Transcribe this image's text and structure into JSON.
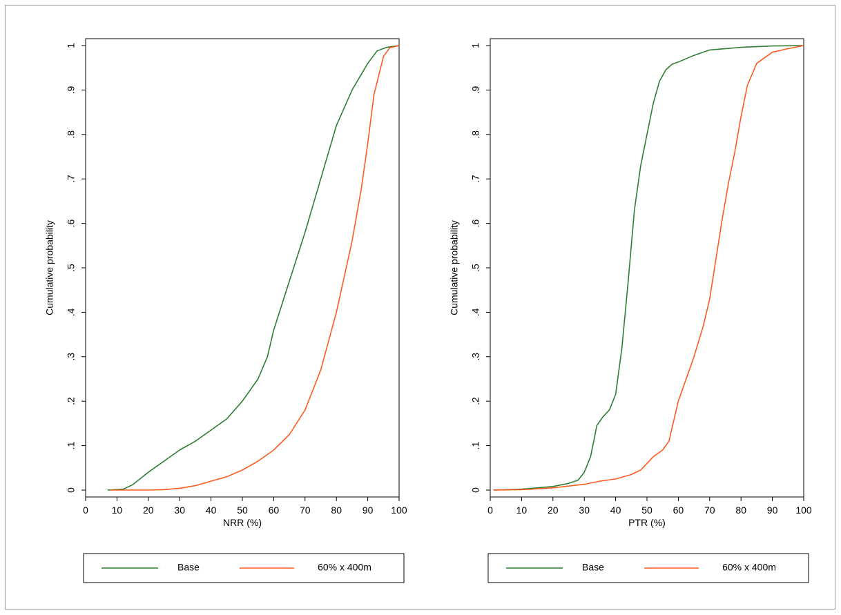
{
  "colors": {
    "base": "#2e7d32",
    "scenario": "#ff5a1f",
    "axis": "#000000",
    "frame": "#9a9a9a"
  },
  "chart_data": [
    {
      "type": "line",
      "xlabel": "NRR (%)",
      "ylabel": "Cumulative probability",
      "xlim": [
        0,
        100
      ],
      "ylim": [
        0,
        1
      ],
      "xticks": [
        0,
        10,
        20,
        30,
        40,
        50,
        60,
        70,
        80,
        90,
        100
      ],
      "xtick_labels": [
        "0",
        "10",
        "20",
        "30",
        "40",
        "50",
        "60",
        "70",
        "80",
        "90",
        "100"
      ],
      "yticks": [
        0,
        0.1,
        0.2,
        0.3,
        0.4,
        0.5,
        0.6,
        0.7,
        0.8,
        0.9,
        1
      ],
      "ytick_labels": [
        "0",
        ".1",
        ".2",
        ".3",
        ".4",
        ".5",
        ".6",
        ".7",
        ".8",
        ".9",
        "1"
      ],
      "legend_position": "bottom",
      "series": [
        {
          "name": "Base",
          "color": "#2e7d32",
          "x": [
            7,
            12,
            15,
            20,
            25,
            30,
            35,
            40,
            45,
            50,
            55,
            58,
            60,
            65,
            70,
            75,
            80,
            85,
            90,
            93,
            96,
            100
          ],
          "y": [
            0,
            0.002,
            0.012,
            0.04,
            0.065,
            0.09,
            0.11,
            0.135,
            0.16,
            0.2,
            0.25,
            0.3,
            0.36,
            0.47,
            0.58,
            0.7,
            0.82,
            0.9,
            0.96,
            0.988,
            0.996,
            1
          ]
        },
        {
          "name": "60% x 400m",
          "color": "#ff5a1f",
          "x": [
            8,
            15,
            20,
            25,
            30,
            35,
            40,
            45,
            50,
            55,
            60,
            65,
            70,
            75,
            80,
            85,
            88,
            90,
            92,
            95,
            97,
            100
          ],
          "y": [
            0,
            0,
            0,
            0.001,
            0.004,
            0.01,
            0.02,
            0.03,
            0.045,
            0.065,
            0.09,
            0.125,
            0.18,
            0.27,
            0.4,
            0.56,
            0.68,
            0.78,
            0.89,
            0.975,
            0.995,
            1
          ]
        }
      ]
    },
    {
      "type": "line",
      "xlabel": "PTR (%)",
      "ylabel": "Cumulative probability",
      "xlim": [
        0,
        100
      ],
      "ylim": [
        0,
        1
      ],
      "xticks": [
        0,
        10,
        20,
        30,
        40,
        50,
        60,
        70,
        80,
        90,
        100
      ],
      "xtick_labels": [
        "0",
        "10",
        "20",
        "30",
        "40",
        "50",
        "60",
        "70",
        "80",
        "90",
        "100"
      ],
      "yticks": [
        0,
        0.1,
        0.2,
        0.3,
        0.4,
        0.5,
        0.6,
        0.7,
        0.8,
        0.9,
        1
      ],
      "ytick_labels": [
        "0",
        ".1",
        ".2",
        ".3",
        ".4",
        ".5",
        ".6",
        ".7",
        ".8",
        ".9",
        "1"
      ],
      "legend_position": "bottom",
      "series": [
        {
          "name": "Base",
          "color": "#2e7d32",
          "x": [
            1,
            10,
            20,
            25,
            28,
            30,
            32,
            34,
            36,
            38,
            40,
            42,
            44,
            46,
            48,
            50,
            52,
            54,
            56,
            58,
            60,
            65,
            70,
            80,
            90,
            100
          ],
          "y": [
            0,
            0.002,
            0.008,
            0.015,
            0.022,
            0.04,
            0.075,
            0.145,
            0.165,
            0.18,
            0.215,
            0.32,
            0.47,
            0.63,
            0.73,
            0.8,
            0.87,
            0.92,
            0.945,
            0.958,
            0.963,
            0.978,
            0.99,
            0.996,
            0.999,
            1
          ]
        },
        {
          "name": "60% x 400m",
          "color": "#ff5a1f",
          "x": [
            1,
            10,
            20,
            30,
            35,
            40,
            45,
            48,
            50,
            52,
            55,
            57,
            58,
            60,
            62,
            65,
            68,
            70,
            72,
            74,
            76,
            78,
            80,
            82,
            85,
            90,
            95,
            100
          ],
          "y": [
            0,
            0.001,
            0.005,
            0.013,
            0.02,
            0.025,
            0.035,
            0.045,
            0.06,
            0.075,
            0.09,
            0.11,
            0.14,
            0.2,
            0.24,
            0.3,
            0.37,
            0.43,
            0.52,
            0.61,
            0.69,
            0.76,
            0.84,
            0.91,
            0.96,
            0.985,
            0.993,
            1
          ]
        }
      ]
    }
  ]
}
